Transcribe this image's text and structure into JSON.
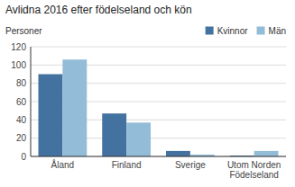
{
  "chart_data": {
    "type": "bar",
    "title": "Avlidna 2016 efter födelseland och kön",
    "ylabel": "Personer",
    "categories": [
      "Åland",
      "Finland",
      "Sverige",
      "Utom Norden\nFödelseland"
    ],
    "series": [
      {
        "name": "Kvinnor",
        "color": "#4472A0",
        "values": [
          90,
          47,
          6,
          1
        ]
      },
      {
        "name": "Män",
        "color": "#92BCD8",
        "values": [
          106,
          37,
          2,
          6
        ]
      }
    ],
    "ylim": [
      0,
      120
    ],
    "yticks": [
      0,
      20,
      40,
      60,
      80,
      100,
      120
    ],
    "grid": true,
    "legend": "upper right"
  }
}
